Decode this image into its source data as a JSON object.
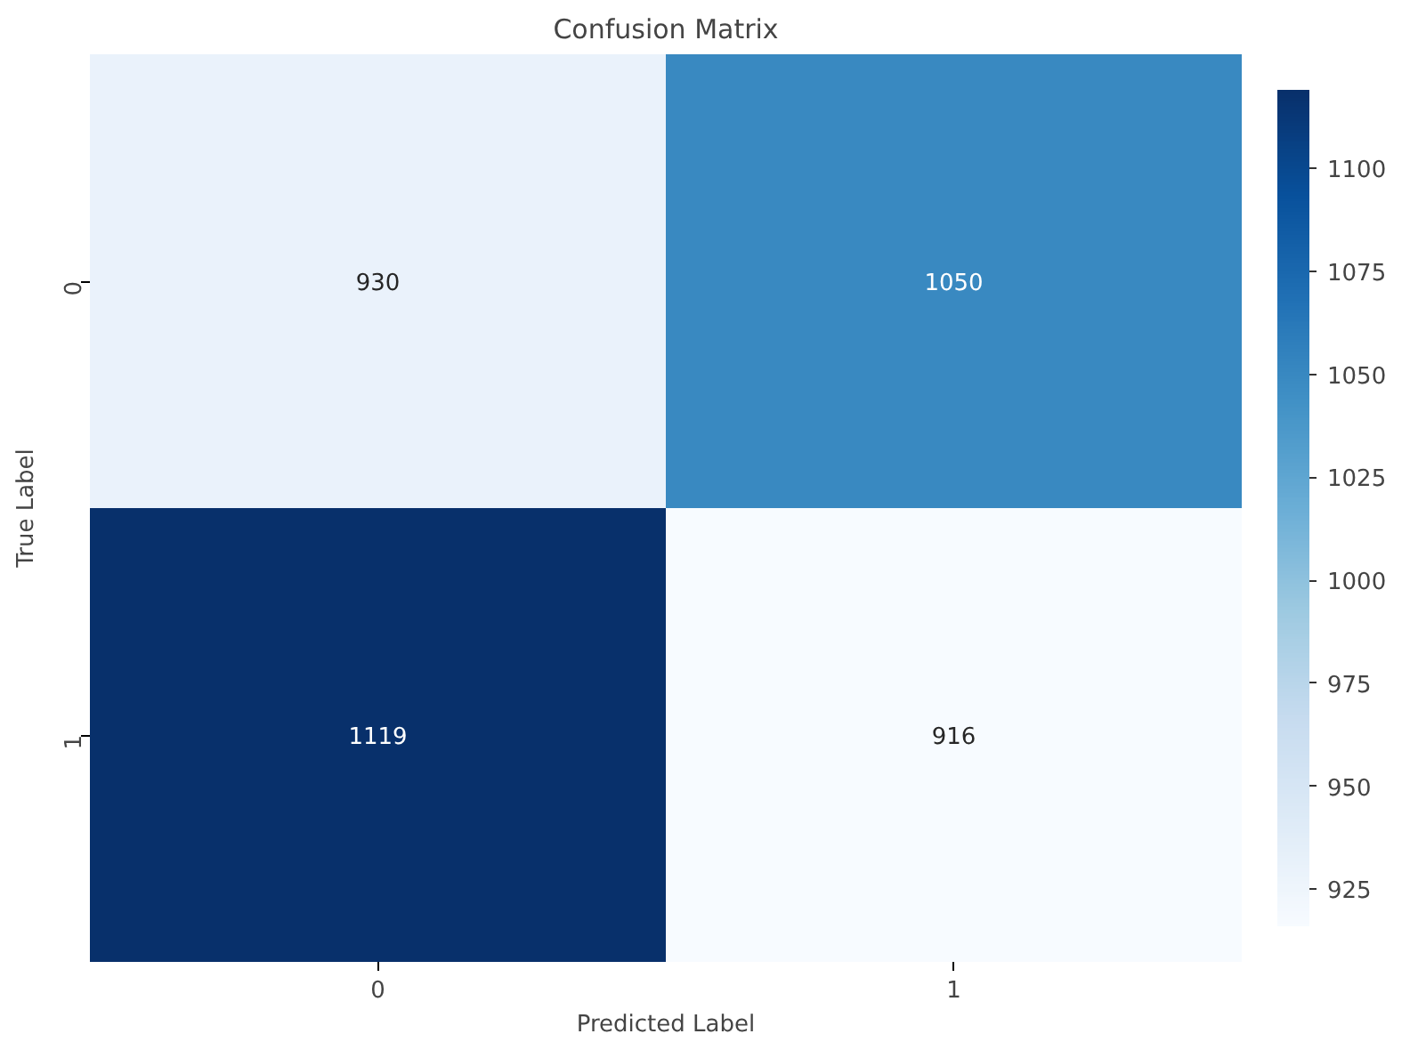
{
  "chart_data": {
    "type": "heatmap",
    "title": "Confusion Matrix",
    "xlabel": "Predicted Label",
    "ylabel": "True Label",
    "categories": [
      "0",
      "1"
    ],
    "y_categories": [
      "0",
      "1"
    ],
    "cells": [
      [
        930,
        1050
      ],
      [
        1119,
        916
      ]
    ],
    "clim": [
      916,
      1119
    ],
    "cticks": [
      925,
      950,
      975,
      1000,
      1025,
      1050,
      1075,
      1100
    ],
    "data_labels": true
  }
}
